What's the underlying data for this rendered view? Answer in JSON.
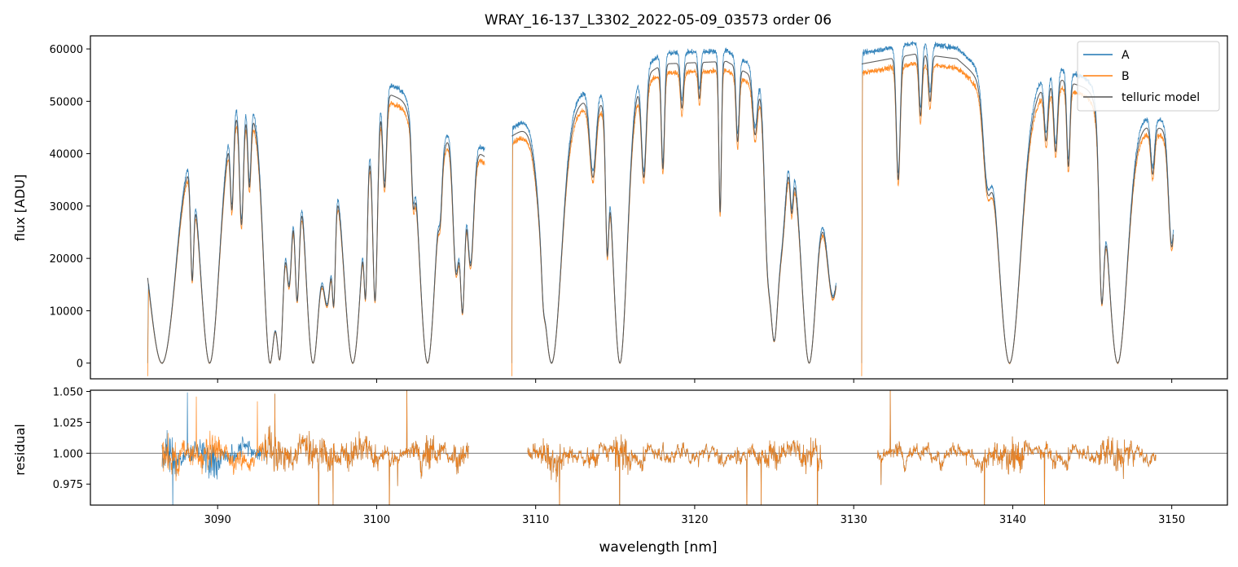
{
  "chart_data": [
    {
      "type": "line",
      "title": "WRAY_16-137_L3302_2022-05-09_03573  order 06",
      "xlabel": "",
      "ylabel": "flux [ADU]",
      "xlim": [
        3082,
        3153.5
      ],
      "ylim": [
        -3000,
        62500
      ],
      "y_ticks": [
        0,
        10000,
        20000,
        30000,
        40000,
        50000,
        60000
      ],
      "y_tick_labels": [
        "0",
        "10000",
        "20000",
        "30000",
        "40000",
        "50000",
        "60000"
      ],
      "x_ticks": [
        3090,
        3100,
        3110,
        3120,
        3130,
        3140,
        3150
      ],
      "legend": {
        "placement": "top-right",
        "entries": [
          "A",
          "B",
          "telluric model"
        ]
      },
      "segments": [
        [
          3085.6,
          3106.8
        ],
        [
          3108.5,
          3128.9
        ],
        [
          3130.5,
          3150.1
        ]
      ],
      "series": [
        {
          "name": "A",
          "color": "#1f77b4",
          "scale": 1.02,
          "noise": 900
        },
        {
          "name": "B",
          "color": "#ff7f0e",
          "scale": 0.955,
          "noise": 900
        },
        {
          "name": "telluric model",
          "color": "#555555",
          "scale": 0.985,
          "noise": 0
        }
      ],
      "envelope": [
        [
          3085.6,
          42000
        ],
        [
          3087.5,
          49000
        ],
        [
          3092.0,
          49000
        ],
        [
          3095.0,
          45000
        ],
        [
          3098.0,
          43000
        ],
        [
          3100.5,
          52500
        ],
        [
          3102.5,
          50000
        ],
        [
          3105.0,
          44000
        ],
        [
          3106.8,
          40000
        ],
        [
          3108.5,
          44000
        ],
        [
          3110.0,
          47000
        ],
        [
          3114.0,
          52000
        ],
        [
          3116.5,
          55000
        ],
        [
          3118.0,
          58000
        ],
        [
          3122.0,
          58500
        ],
        [
          3124.0,
          55000
        ],
        [
          3125.5,
          44000
        ],
        [
          3127.0,
          38000
        ],
        [
          3128.9,
          36000
        ],
        [
          3130.5,
          58000
        ],
        [
          3134.0,
          60000
        ],
        [
          3136.5,
          59000
        ],
        [
          3138.0,
          55000
        ],
        [
          3141.0,
          53000
        ],
        [
          3143.0,
          55000
        ],
        [
          3145.0,
          53000
        ],
        [
          3147.0,
          47000
        ],
        [
          3150.1,
          45000
        ]
      ],
      "absorption_lines": [
        [
          3086.5,
          0.9,
          1.0
        ],
        [
          3088.4,
          0.1,
          0.55
        ],
        [
          3089.5,
          0.6,
          1.0
        ],
        [
          3090.9,
          0.1,
          0.35
        ],
        [
          3091.5,
          0.12,
          0.45
        ],
        [
          3092.0,
          0.1,
          0.3
        ],
        [
          3093.3,
          0.4,
          1.0
        ],
        [
          3093.9,
          0.25,
          0.98
        ],
        [
          3094.5,
          0.2,
          0.65
        ],
        [
          3095.0,
          0.15,
          0.7
        ],
        [
          3096.0,
          0.45,
          1.0
        ],
        [
          3096.9,
          0.3,
          0.7
        ],
        [
          3097.3,
          0.1,
          0.6
        ],
        [
          3098.5,
          0.55,
          1.0
        ],
        [
          3099.3,
          0.1,
          0.6
        ],
        [
          3099.9,
          0.15,
          0.75
        ],
        [
          3100.5,
          0.12,
          0.35
        ],
        [
          3102.3,
          0.1,
          0.25
        ],
        [
          3103.2,
          0.5,
          1.0
        ],
        [
          3104.0,
          0.1,
          0.2
        ],
        [
          3105.0,
          0.2,
          0.6
        ],
        [
          3105.4,
          0.15,
          0.75
        ],
        [
          3105.9,
          0.2,
          0.55
        ],
        [
          3110.5,
          0.1,
          0.3
        ],
        [
          3111.0,
          0.6,
          1.0
        ],
        [
          3113.6,
          0.2,
          0.3
        ],
        [
          3114.5,
          0.1,
          0.5
        ],
        [
          3115.3,
          0.45,
          1.0
        ],
        [
          3116.8,
          0.15,
          0.35
        ],
        [
          3118.0,
          0.1,
          0.35
        ],
        [
          3119.2,
          0.1,
          0.15
        ],
        [
          3120.3,
          0.08,
          0.12
        ],
        [
          3121.6,
          0.08,
          0.5
        ],
        [
          3122.7,
          0.1,
          0.25
        ],
        [
          3123.8,
          0.15,
          0.2
        ],
        [
          3124.6,
          0.2,
          0.5
        ],
        [
          3125.0,
          0.3,
          0.9
        ],
        [
          3125.5,
          0.25,
          0.35
        ],
        [
          3126.1,
          0.1,
          0.25
        ],
        [
          3127.2,
          0.45,
          1.0
        ],
        [
          3128.7,
          0.4,
          0.65
        ],
        [
          3132.8,
          0.12,
          0.4
        ],
        [
          3134.2,
          0.1,
          0.2
        ],
        [
          3134.8,
          0.1,
          0.15
        ],
        [
          3138.4,
          0.25,
          0.3
        ],
        [
          3139.8,
          0.7,
          1.0
        ],
        [
          3142.1,
          0.12,
          0.2
        ],
        [
          3142.7,
          0.12,
          0.25
        ],
        [
          3143.5,
          0.1,
          0.3
        ],
        [
          3145.6,
          0.15,
          0.7
        ],
        [
          3146.6,
          0.6,
          1.0
        ],
        [
          3148.8,
          0.12,
          0.2
        ],
        [
          3150.0,
          0.2,
          0.5
        ]
      ]
    },
    {
      "type": "line",
      "title": "",
      "xlabel": "wavelength [nm]",
      "ylabel": "residual",
      "xlim": [
        3082,
        3153.5
      ],
      "ylim": [
        0.958,
        1.051
      ],
      "y_ticks": [
        0.975,
        1.0,
        1.025,
        1.05
      ],
      "y_tick_labels": [
        "0.975",
        "1.000",
        "1.025",
        "1.050"
      ],
      "x_ticks": [
        3090,
        3100,
        3110,
        3120,
        3130,
        3140,
        3150
      ],
      "x_tick_labels": [
        "3090",
        "3100",
        "3110",
        "3120",
        "3130",
        "3140",
        "3150"
      ],
      "reference_line": 1.0,
      "segments": [
        [
          3086.5,
          3105.8
        ],
        [
          3109.5,
          3128.0
        ],
        [
          3131.5,
          3149.0
        ]
      ],
      "series": [
        {
          "name": "A",
          "color": "#1f77b4",
          "amplitude": 0.016
        },
        {
          "name": "B",
          "color": "#ff7f0e",
          "amplitude": 0.016
        }
      ]
    }
  ]
}
